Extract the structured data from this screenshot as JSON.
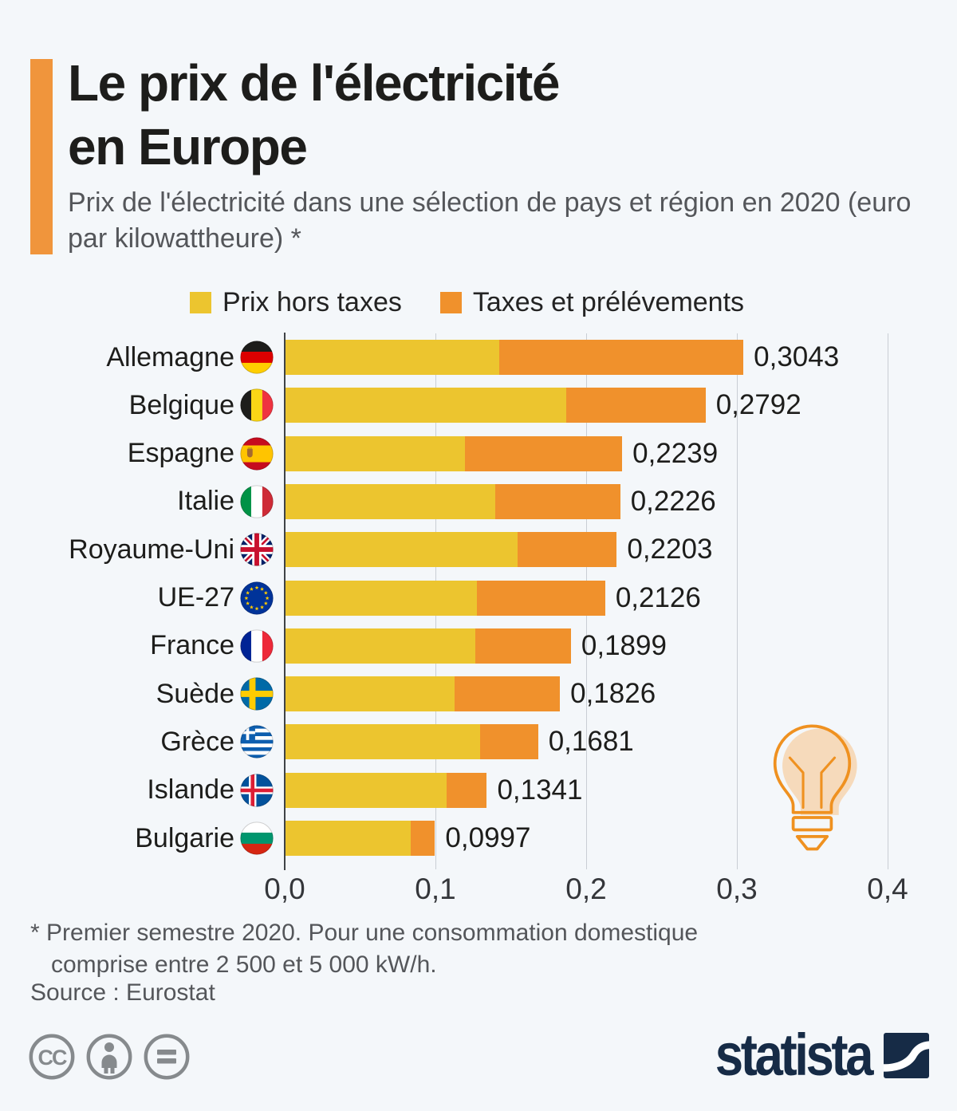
{
  "header": {
    "title_line1": "Le prix de l'électricité",
    "title_line2": "en Europe",
    "subtitle": "Prix de l'électricité dans une sélection de pays et région en 2020 (euro par kilowattheure) *",
    "accent_color": "#F0953C"
  },
  "legend": [
    {
      "label": "Prix hors taxes",
      "color": "#ECC52F"
    },
    {
      "label": "Taxes et prélévements",
      "color": "#F0912C"
    }
  ],
  "chart_data": {
    "type": "bar",
    "orientation": "horizontal",
    "stacked": true,
    "unit": "euro par kilowattheure",
    "grid": true,
    "xlim": [
      0,
      0.4
    ],
    "x_ticks": [
      "0,0",
      "0,1",
      "0,2",
      "0,3",
      "0,4"
    ],
    "x_tick_values": [
      0,
      0.1,
      0.2,
      0.3,
      0.4
    ],
    "categories": [
      "Allemagne",
      "Belgique",
      "Espagne",
      "Italie",
      "Royaume-Uni",
      "UE-27",
      "France",
      "Suède",
      "Grèce",
      "Islande",
      "Bulgarie"
    ],
    "flags": [
      "de",
      "be",
      "es",
      "it",
      "gb",
      "eu",
      "fr",
      "se",
      "gr",
      "is",
      "bg"
    ],
    "series": [
      {
        "name": "Prix hors taxes",
        "color": "#ECC52F",
        "values": [
          0.142,
          0.186,
          0.119,
          0.139,
          0.154,
          0.127,
          0.126,
          0.112,
          0.129,
          0.107,
          0.083
        ]
      },
      {
        "name": "Taxes et prélévements",
        "color": "#F0912C",
        "values": [
          0.1623,
          0.0932,
          0.1049,
          0.0836,
          0.0663,
          0.0856,
          0.0639,
          0.0706,
          0.0391,
          0.0271,
          0.0167
        ]
      }
    ],
    "series_values_estimated": true,
    "totals": [
      0.3043,
      0.2792,
      0.2239,
      0.2226,
      0.2203,
      0.2126,
      0.1899,
      0.1826,
      0.1681,
      0.1341,
      0.0997
    ],
    "total_labels": [
      "0,3043",
      "0,2792",
      "0,2239",
      "0,2226",
      "0,2203",
      "0,2126",
      "0,1899",
      "0,1826",
      "0,1681",
      "0,1341",
      "0,0997"
    ]
  },
  "footer": {
    "footnote_line1": "* Premier semestre 2020. Pour une consommation domestique",
    "footnote_line2": "comprise entre 2 500 et 5 000 kW/h.",
    "source": "Source : Eurostat",
    "brand": "statista",
    "brand_color": "#162B46",
    "license_icons": [
      "cc-icon",
      "attribution-person-icon",
      "no-derivatives-equals-icon"
    ]
  }
}
